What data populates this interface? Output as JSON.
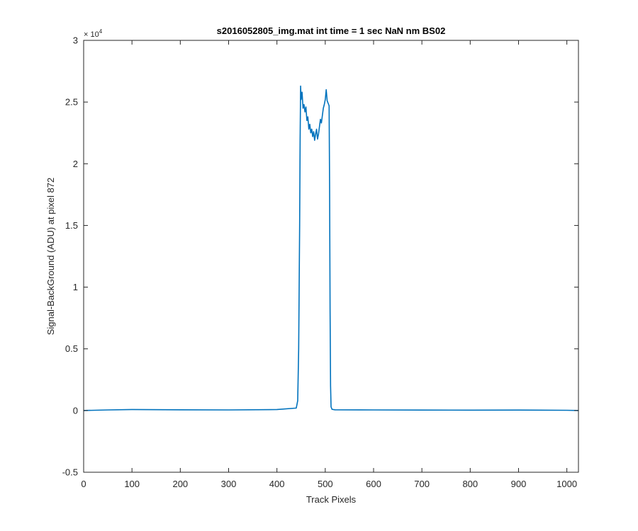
{
  "chart_data": {
    "type": "line",
    "title": "s2016052805_img.mat int time = 1 sec  NaN nm BS02",
    "xlabel": "Track Pixels",
    "ylabel": "Signal-BackGround (ADU) at pixel 872",
    "xlim": [
      0,
      1024
    ],
    "ylim": [
      -5000,
      30000
    ],
    "x_ticks": [
      0,
      100,
      200,
      300,
      400,
      500,
      600,
      700,
      800,
      900,
      1000
    ],
    "x_tick_labels": [
      "0",
      "100",
      "200",
      "300",
      "400",
      "500",
      "600",
      "700",
      "800",
      "900",
      "1000"
    ],
    "y_ticks": [
      -5000,
      0,
      5000,
      10000,
      15000,
      20000,
      25000,
      30000
    ],
    "y_tick_labels": [
      "-0.5",
      "0",
      "0.5",
      "1",
      "1.5",
      "2",
      "2.5",
      "3"
    ],
    "y_exponent_base": "× 10",
    "y_exponent_power": "4",
    "grid": false,
    "line_color": "#0072bd",
    "series": [
      {
        "x": [
          0,
          50,
          100,
          200,
          300,
          400,
          440,
          443,
          445,
          447,
          448,
          449,
          450,
          452,
          454,
          456,
          458,
          460,
          462,
          464,
          466,
          468,
          470,
          472,
          474,
          476,
          478,
          480,
          482,
          484,
          486,
          488,
          490,
          492,
          494,
          496,
          498,
          500,
          502,
          504,
          506,
          508,
          509,
          510,
          511,
          512,
          514,
          520,
          600,
          700,
          800,
          900,
          1000,
          1024
        ],
        "y": [
          0,
          50,
          80,
          60,
          50,
          80,
          200,
          800,
          5000,
          15000,
          22000,
          26300,
          25200,
          25800,
          24500,
          24800,
          24200,
          24600,
          23500,
          23800,
          22800,
          23200,
          22500,
          22800,
          22200,
          22600,
          21900,
          22400,
          22800,
          22000,
          22400,
          23000,
          23600,
          23300,
          23900,
          24500,
          24800,
          25200,
          26000,
          25100,
          24900,
          24700,
          18000,
          8000,
          2000,
          300,
          100,
          60,
          50,
          40,
          30,
          40,
          20,
          0
        ]
      }
    ]
  }
}
